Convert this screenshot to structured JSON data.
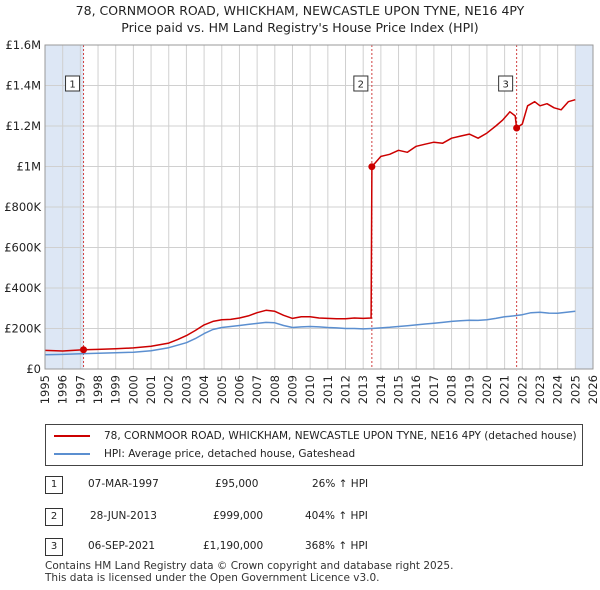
{
  "title_line1": "78, CORNMOOR ROAD, WHICKHAM, NEWCASTLE UPON TYNE, NE16 4PY",
  "title_line2": "Price paid vs. HM Land Registry's House Price Index (HPI)",
  "colors": {
    "property": "#cc0000",
    "hpi": "#5b8fd0",
    "shade": "#dde7f5",
    "grid": "#d0d0d0"
  },
  "chart_data": {
    "type": "line",
    "xlim": [
      1995,
      2026
    ],
    "ylim": [
      0,
      1600000
    ],
    "y_ticks": [
      {
        "value": 0,
        "label": "£0"
      },
      {
        "value": 200000,
        "label": "£200K"
      },
      {
        "value": 400000,
        "label": "£400K"
      },
      {
        "value": 600000,
        "label": "£600K"
      },
      {
        "value": 800000,
        "label": "£800K"
      },
      {
        "value": 1000000,
        "label": "£1M"
      },
      {
        "value": 1200000,
        "label": "£1.2M"
      },
      {
        "value": 1400000,
        "label": "£1.4M"
      },
      {
        "value": 1600000,
        "label": "£1.6M"
      }
    ],
    "x_ticks": [
      "1995",
      "1996",
      "1997",
      "1998",
      "1999",
      "2000",
      "2001",
      "2002",
      "2003",
      "2004",
      "2005",
      "2006",
      "2007",
      "2008",
      "2009",
      "2010",
      "2011",
      "2012",
      "2013",
      "2014",
      "2015",
      "2016",
      "2017",
      "2018",
      "2019",
      "2020",
      "2021",
      "2022",
      "2023",
      "2024",
      "2025",
      "2026"
    ],
    "shaded_regions": [
      [
        1995,
        1997.18
      ],
      [
        2025.0,
        2026
      ]
    ],
    "series": [
      {
        "name": "78, CORNMOOR ROAD, WHICKHAM, NEWCASTLE UPON TYNE, NE16 4PY (detached house)",
        "color_key": "property",
        "x": [
          1995.0,
          1996.0,
          1997.17,
          1997.2,
          1998.0,
          1999.0,
          2000.0,
          2001.0,
          2002.0,
          2002.5,
          2003.0,
          2003.5,
          2004.0,
          2004.5,
          2005.0,
          2005.5,
          2006.0,
          2006.5,
          2007.0,
          2007.5,
          2008.0,
          2008.5,
          2009.0,
          2009.5,
          2010.0,
          2010.5,
          2011.0,
          2011.5,
          2012.0,
          2012.5,
          2013.0,
          2013.45,
          2013.49,
          2013.6,
          2014.0,
          2014.5,
          2015.0,
          2015.5,
          2016.0,
          2016.5,
          2017.0,
          2017.5,
          2018.0,
          2018.5,
          2019.0,
          2019.5,
          2020.0,
          2020.5,
          2020.9,
          2021.3,
          2021.6,
          2021.68,
          2022.0,
          2022.3,
          2022.7,
          2023.0,
          2023.4,
          2023.8,
          2024.2,
          2024.6,
          2025.0
        ],
        "y": [
          92000,
          89000,
          95000,
          95000,
          97000,
          100000,
          104000,
          112000,
          128000,
          145000,
          165000,
          190000,
          218000,
          235000,
          243000,
          245000,
          252000,
          262000,
          278000,
          290000,
          285000,
          265000,
          250000,
          258000,
          258000,
          252000,
          250000,
          248000,
          248000,
          252000,
          250000,
          252000,
          999000,
          1010000,
          1050000,
          1060000,
          1080000,
          1070000,
          1100000,
          1110000,
          1120000,
          1115000,
          1140000,
          1150000,
          1160000,
          1140000,
          1165000,
          1200000,
          1230000,
          1270000,
          1250000,
          1190000,
          1210000,
          1300000,
          1320000,
          1300000,
          1310000,
          1290000,
          1280000,
          1320000,
          1330000
        ]
      },
      {
        "name": "HPI: Average price, detached house, Gateshead",
        "color_key": "hpi",
        "x": [
          1995.0,
          1996.0,
          1997.0,
          1998.0,
          1999.0,
          2000.0,
          2001.0,
          2002.0,
          2003.0,
          2003.5,
          2004.0,
          2004.5,
          2005.0,
          2005.5,
          2006.0,
          2006.5,
          2007.0,
          2007.5,
          2008.0,
          2008.5,
          2009.0,
          2009.5,
          2010.0,
          2010.5,
          2011.0,
          2011.5,
          2012.0,
          2012.5,
          2013.0,
          2013.5,
          2014.0,
          2014.5,
          2015.0,
          2015.5,
          2016.0,
          2016.5,
          2017.0,
          2017.5,
          2018.0,
          2018.5,
          2019.0,
          2019.5,
          2020.0,
          2020.5,
          2021.0,
          2021.5,
          2022.0,
          2022.5,
          2023.0,
          2023.5,
          2024.0,
          2024.5,
          2025.0
        ],
        "y": [
          70000,
          72000,
          75000,
          78000,
          80000,
          83000,
          90000,
          105000,
          130000,
          150000,
          175000,
          195000,
          205000,
          210000,
          215000,
          220000,
          225000,
          230000,
          228000,
          215000,
          205000,
          208000,
          210000,
          208000,
          205000,
          203000,
          200000,
          200000,
          198000,
          200000,
          203000,
          206000,
          210000,
          214000,
          218000,
          222000,
          226000,
          230000,
          235000,
          238000,
          241000,
          240000,
          243000,
          250000,
          258000,
          262000,
          268000,
          278000,
          280000,
          276000,
          275000,
          280000,
          285000
        ]
      }
    ],
    "sales": [
      {
        "n": "1",
        "x": 1997.18,
        "y": 95000,
        "date": "07-MAR-1997",
        "price": "£95,000",
        "hpi_change": "26% ↑ HPI"
      },
      {
        "n": "2",
        "x": 2013.49,
        "y": 999000,
        "date": "28-JUN-2013",
        "price": "£999,000",
        "hpi_change": "404% ↑ HPI"
      },
      {
        "n": "3",
        "x": 2021.68,
        "y": 1190000,
        "date": "06-SEP-2021",
        "price": "£1,190,000",
        "hpi_change": "368% ↑ HPI"
      }
    ]
  },
  "legend": {
    "property_label": "78, CORNMOOR ROAD, WHICKHAM, NEWCASTLE UPON TYNE, NE16 4PY (detached house)",
    "hpi_label": "HPI: Average price, detached house, Gateshead"
  },
  "table": [
    {
      "n": "1",
      "date": "07-MAR-1997",
      "price": "£95,000",
      "change": "26% ↑ HPI"
    },
    {
      "n": "2",
      "date": "28-JUN-2013",
      "price": "£999,000",
      "change": "404% ↑ HPI"
    },
    {
      "n": "3",
      "date": "06-SEP-2021",
      "price": "£1,190,000",
      "change": "368% ↑ HPI"
    }
  ],
  "footer_line1": "Contains HM Land Registry data © Crown copyright and database right 2025.",
  "footer_line2": "This data is licensed under the Open Government Licence v3.0."
}
